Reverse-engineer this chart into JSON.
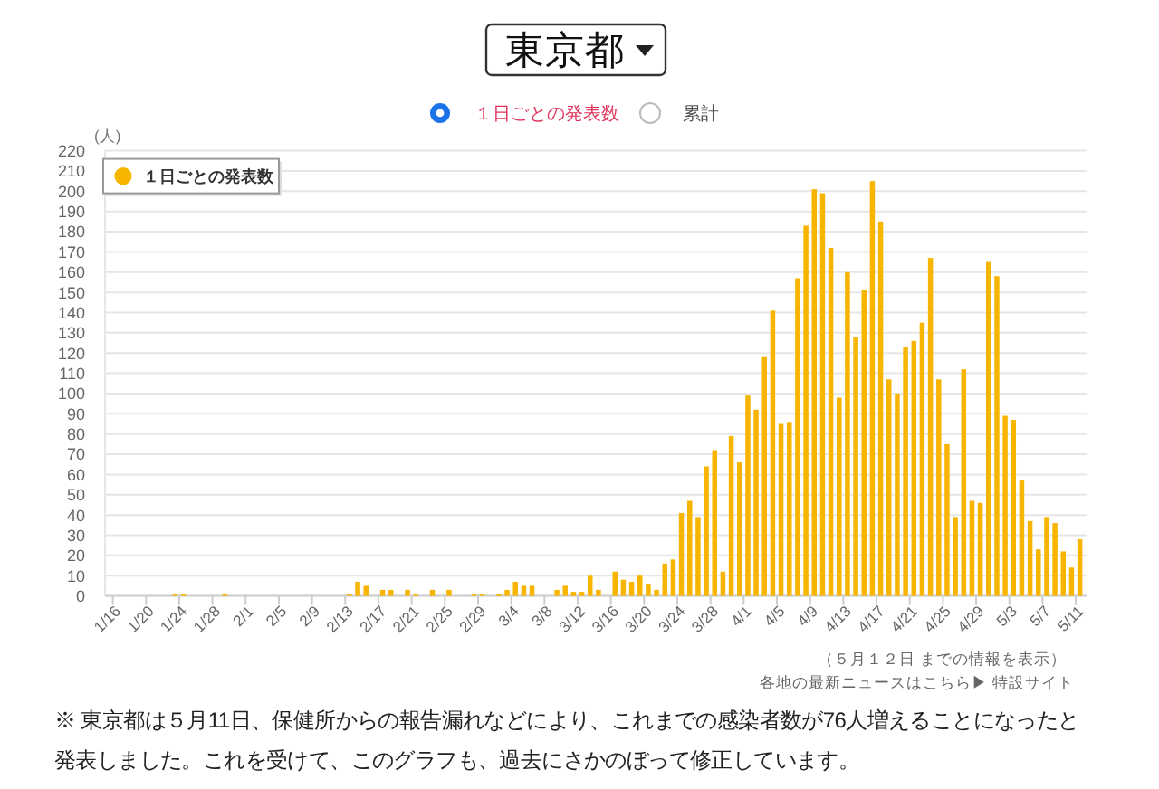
{
  "chart_data": {
    "type": "bar",
    "title": "東京都",
    "ylabel": "(人)",
    "categories": [
      "1/16",
      null,
      null,
      null,
      "1/20",
      null,
      null,
      null,
      "1/24",
      null,
      null,
      null,
      "1/28",
      null,
      null,
      null,
      "2/1",
      null,
      null,
      null,
      "2/5",
      null,
      null,
      null,
      "2/9",
      null,
      null,
      null,
      "2/13",
      null,
      null,
      null,
      "2/17",
      null,
      null,
      null,
      "2/21",
      null,
      null,
      null,
      "2/25",
      null,
      null,
      null,
      "2/29",
      null,
      null,
      null,
      "3/4",
      null,
      null,
      null,
      "3/8",
      null,
      null,
      null,
      "3/12",
      null,
      null,
      null,
      "3/16",
      null,
      null,
      null,
      "3/20",
      null,
      null,
      null,
      "3/24",
      null,
      null,
      null,
      "3/28",
      null,
      null,
      null,
      "4/1",
      null,
      null,
      null,
      "4/5",
      null,
      null,
      null,
      "4/9",
      null,
      null,
      null,
      "4/13",
      null,
      null,
      null,
      "4/17",
      null,
      null,
      null,
      "4/21",
      null,
      null,
      null,
      "4/25",
      null,
      null,
      null,
      "4/29",
      null,
      null,
      null,
      "5/3",
      null,
      null,
      null,
      "5/7",
      null,
      null,
      null,
      "5/11"
    ],
    "series": [
      {
        "name": "１日ごとの発表数",
        "color": "#f7b500",
        "values": [
          0,
          0,
          0,
          0,
          0,
          0,
          0,
          1,
          1,
          0,
          0,
          0,
          0,
          1,
          0,
          0,
          0,
          0,
          0,
          0,
          0,
          0,
          0,
          0,
          0,
          0,
          0,
          0,
          1,
          7,
          5,
          0,
          3,
          3,
          0,
          3,
          1,
          0,
          3,
          0,
          3,
          0,
          0,
          1,
          1,
          0,
          1,
          3,
          7,
          5,
          5,
          0,
          0,
          3,
          5,
          2,
          2,
          10,
          3,
          0,
          12,
          8,
          7,
          10,
          6,
          3,
          16,
          18,
          41,
          47,
          39,
          64,
          72,
          12,
          79,
          66,
          99,
          92,
          118,
          141,
          85,
          86,
          157,
          183,
          201,
          199,
          172,
          98,
          160,
          128,
          151,
          205,
          185,
          107,
          100,
          123,
          126,
          135,
          167,
          107,
          75,
          39,
          112,
          47,
          46,
          165,
          158,
          89,
          87,
          57,
          37,
          23,
          39,
          36,
          22,
          14,
          28
        ]
      }
    ],
    "ylim": [
      0,
      220
    ],
    "yticks": [
      0,
      10,
      20,
      30,
      40,
      50,
      60,
      70,
      80,
      90,
      100,
      110,
      120,
      130,
      140,
      150,
      160,
      170,
      180,
      190,
      200,
      210,
      220
    ],
    "grid": "y",
    "legend": "top left",
    "annotations": [
      "１日ごとの発表数",
      "累計",
      "（５月１２日 までの情報を表示）",
      "各地の最新ニュースはこちら▶ 特設サイト",
      "※ 東京都は５月11日、保健所からの報告漏れなどにより、これまでの感染者数が76人増えることになったと発表しました。これを受けて、このグラフも、過去にさかのぼって修正しています。"
    ]
  }
}
